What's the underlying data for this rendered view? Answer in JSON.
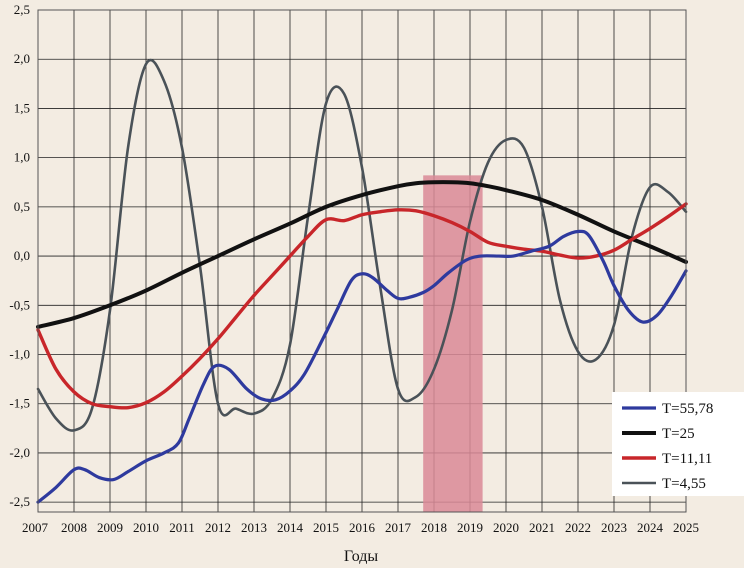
{
  "chart_data": {
    "type": "line",
    "xlabel": "Годы",
    "ylabel": "",
    "title": "",
    "xlim": [
      2007,
      2025
    ],
    "ylim": [
      -2.6,
      2.5
    ],
    "x_ticks": [
      "2007",
      "2008",
      "2009",
      "2010",
      "2011",
      "2012",
      "2013",
      "2014",
      "2015",
      "2016",
      "2017",
      "2018",
      "2019",
      "2020",
      "2021",
      "2022",
      "2023",
      "2024",
      "2025"
    ],
    "x_tick_values": [
      2007,
      2008,
      2009,
      2010,
      2011,
      2012,
      2013,
      2014,
      2015,
      2016,
      2017,
      2018,
      2019,
      2020,
      2021,
      2022,
      2023,
      2024,
      2025
    ],
    "y_ticks": [
      "-2,5",
      "-2,0",
      "-1,5",
      "-1,0",
      "-0,5",
      "0,0",
      "0,5",
      "1,0",
      "1,5",
      "2,0",
      "2,5"
    ],
    "y_tick_values": [
      -2.5,
      -2.0,
      -1.5,
      -1.0,
      -0.5,
      0.0,
      0.5,
      1.0,
      1.5,
      2.0,
      2.5
    ],
    "grid": true,
    "legend_position": "bottom-right",
    "highlight_band": {
      "x_start": 2017.7,
      "x_end": 2019.35,
      "color": "#d98a96"
    },
    "series": [
      {
        "name": "T=55,78",
        "color": "#2e3a9e",
        "x": [
          2007,
          2007.5,
          2008,
          2008.3,
          2008.7,
          2009.1,
          2009.5,
          2010,
          2010.5,
          2010.9,
          2011.2,
          2011.6,
          2011.9,
          2012.3,
          2012.8,
          2013.2,
          2013.6,
          2014.0,
          2014.4,
          2014.9,
          2015.3,
          2015.7,
          2016.0,
          2016.3,
          2016.7,
          2017.0,
          2017.3,
          2017.7,
          2018.0,
          2018.4,
          2018.9,
          2019.3,
          2019.8,
          2020.2,
          2020.7,
          2021.2,
          2021.6,
          2022.0,
          2022.3,
          2022.7,
          2023.0,
          2023.4,
          2023.8,
          2024.2,
          2024.6,
          2025
        ],
        "y": [
          -2.5,
          -2.35,
          -2.17,
          -2.17,
          -2.25,
          -2.27,
          -2.19,
          -2.08,
          -2.0,
          -1.9,
          -1.65,
          -1.3,
          -1.12,
          -1.15,
          -1.35,
          -1.45,
          -1.46,
          -1.37,
          -1.2,
          -0.85,
          -0.55,
          -0.25,
          -0.18,
          -0.22,
          -0.35,
          -0.43,
          -0.42,
          -0.37,
          -0.3,
          -0.17,
          -0.04,
          0.0,
          0.0,
          0.0,
          0.05,
          0.1,
          0.2,
          0.25,
          0.21,
          -0.05,
          -0.3,
          -0.55,
          -0.67,
          -0.6,
          -0.4,
          -0.15
        ]
      },
      {
        "name": "T=25",
        "color": "#111111",
        "x": [
          2007,
          2008,
          2009,
          2010,
          2011,
          2012,
          2013,
          2014,
          2015,
          2016,
          2017,
          2017.5,
          2018,
          2018.5,
          2019,
          2019.5,
          2020,
          2021,
          2022,
          2023,
          2024,
          2025
        ],
        "y": [
          -0.72,
          -0.63,
          -0.5,
          -0.35,
          -0.17,
          0.0,
          0.17,
          0.33,
          0.5,
          0.62,
          0.71,
          0.74,
          0.75,
          0.75,
          0.74,
          0.71,
          0.67,
          0.57,
          0.42,
          0.25,
          0.1,
          -0.06
        ]
      },
      {
        "name": "T=11,11",
        "color": "#c8262a",
        "x": [
          2007,
          2007.5,
          2008,
          2008.5,
          2009,
          2009.5,
          2010,
          2010.5,
          2011,
          2011.5,
          2012,
          2012.5,
          2013,
          2013.5,
          2014,
          2014.5,
          2015,
          2015.5,
          2016,
          2016.5,
          2017,
          2017.5,
          2018,
          2018.5,
          2019,
          2019.5,
          2020,
          2020.5,
          2021,
          2021.5,
          2022,
          2022.5,
          2023,
          2023.5,
          2024,
          2024.5,
          2025
        ],
        "y": [
          -0.75,
          -1.15,
          -1.38,
          -1.5,
          -1.53,
          -1.54,
          -1.49,
          -1.38,
          -1.22,
          -1.04,
          -0.84,
          -0.62,
          -0.4,
          -0.2,
          0.0,
          0.2,
          0.37,
          0.36,
          0.42,
          0.45,
          0.47,
          0.46,
          0.41,
          0.34,
          0.25,
          0.14,
          0.1,
          0.07,
          0.05,
          0.01,
          -0.02,
          0.0,
          0.06,
          0.17,
          0.28,
          0.4,
          0.53
        ]
      },
      {
        "name": "T=4,55",
        "color": "#4a5258",
        "x": [
          2007,
          2007.5,
          2008,
          2008.5,
          2009,
          2009.5,
          2010,
          2010.5,
          2011,
          2011.5,
          2012,
          2012.5,
          2013,
          2013.5,
          2014,
          2014.5,
          2015,
          2015.5,
          2016,
          2016.5,
          2017,
          2017.5,
          2018,
          2018.5,
          2019,
          2019.5,
          2020,
          2020.5,
          2021,
          2021.5,
          2022,
          2022.5,
          2023,
          2023.5,
          2024,
          2024.5,
          2025
        ],
        "y": [
          -1.35,
          -1.65,
          -1.77,
          -1.55,
          -0.55,
          1.1,
          1.95,
          1.78,
          1.1,
          -0.1,
          -1.5,
          -1.55,
          -1.6,
          -1.45,
          -0.9,
          0.4,
          1.55,
          1.65,
          0.9,
          -0.3,
          -1.35,
          -1.43,
          -1.15,
          -0.55,
          0.35,
          0.95,
          1.18,
          1.1,
          0.5,
          -0.45,
          -0.97,
          -1.05,
          -0.7,
          0.2,
          0.7,
          0.65,
          0.45
        ]
      }
    ]
  }
}
